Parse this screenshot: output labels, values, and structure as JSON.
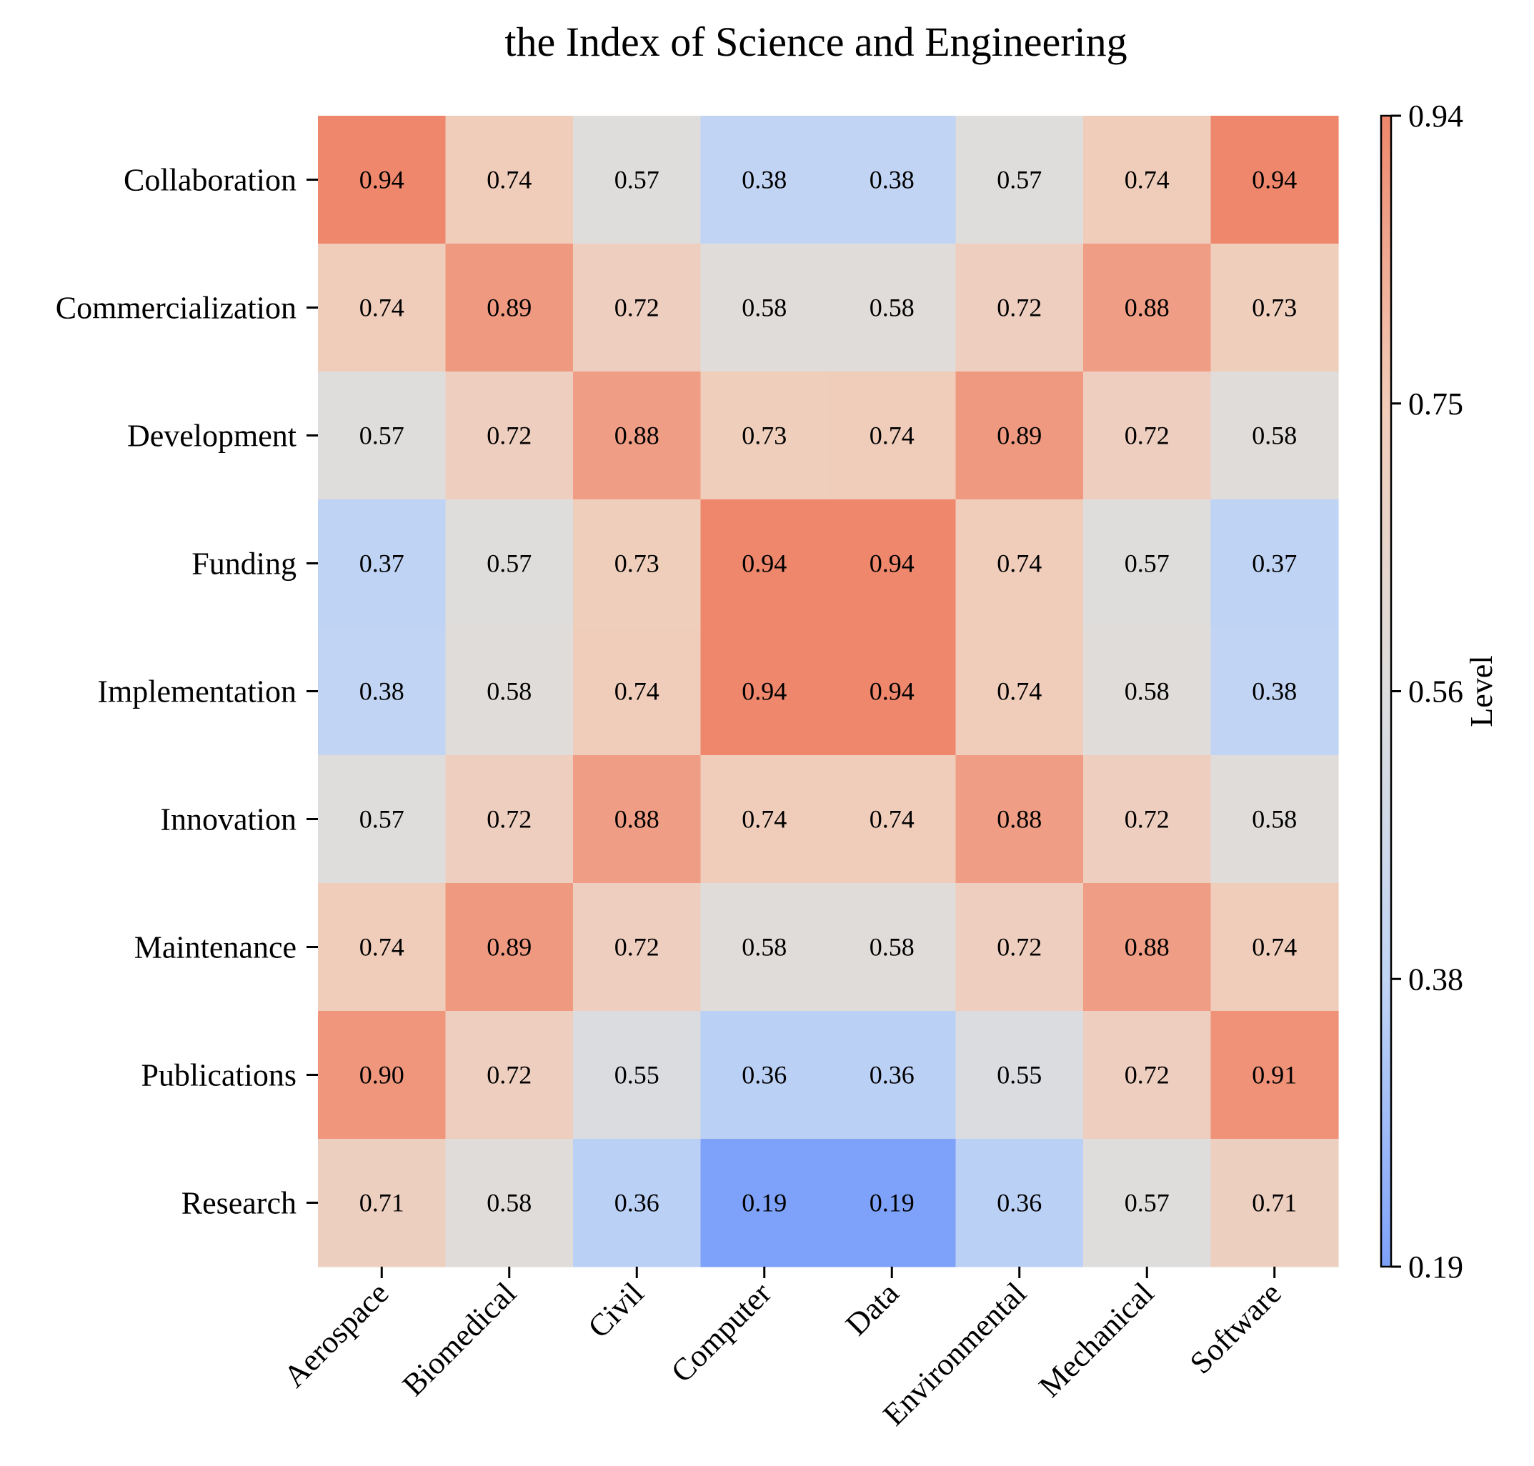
{
  "chart_data": {
    "type": "heatmap",
    "title": "the Index of Science and Engineering",
    "x_categories": [
      "Aerospace",
      "Biomedical",
      "Civil",
      "Computer",
      "Data",
      "Environmental",
      "Mechanical",
      "Software"
    ],
    "y_categories": [
      "Collaboration",
      "Commercialization",
      "Development",
      "Funding",
      "Implementation",
      "Innovation",
      "Maintenance",
      "Publications",
      "Research"
    ],
    "values": [
      [
        0.94,
        0.74,
        0.57,
        0.38,
        0.38,
        0.57,
        0.74,
        0.94
      ],
      [
        0.74,
        0.89,
        0.72,
        0.58,
        0.58,
        0.72,
        0.88,
        0.73
      ],
      [
        0.57,
        0.72,
        0.88,
        0.73,
        0.74,
        0.89,
        0.72,
        0.58
      ],
      [
        0.37,
        0.57,
        0.73,
        0.94,
        0.94,
        0.74,
        0.57,
        0.37
      ],
      [
        0.38,
        0.58,
        0.74,
        0.94,
        0.94,
        0.74,
        0.58,
        0.38
      ],
      [
        0.57,
        0.72,
        0.88,
        0.74,
        0.74,
        0.88,
        0.72,
        0.58
      ],
      [
        0.74,
        0.89,
        0.72,
        0.58,
        0.58,
        0.72,
        0.88,
        0.74
      ],
      [
        0.9,
        0.72,
        0.55,
        0.36,
        0.36,
        0.55,
        0.72,
        0.91
      ],
      [
        0.71,
        0.58,
        0.36,
        0.19,
        0.19,
        0.36,
        0.57,
        0.71
      ]
    ],
    "value_format_decimals": 2,
    "colormap": "coolwarm",
    "colormap_stops": [
      "#3b4cc0",
      "#7b9ff9",
      "#c0d4f5",
      "#dddddd",
      "#f2cbb7",
      "#ee8468",
      "#b40426"
    ],
    "vmin": 0.19,
    "vmax": 0.94,
    "colorbar": {
      "label": "Level",
      "ticks": [
        "0.19",
        "0.38",
        "0.56",
        "0.75",
        "0.94"
      ]
    }
  }
}
